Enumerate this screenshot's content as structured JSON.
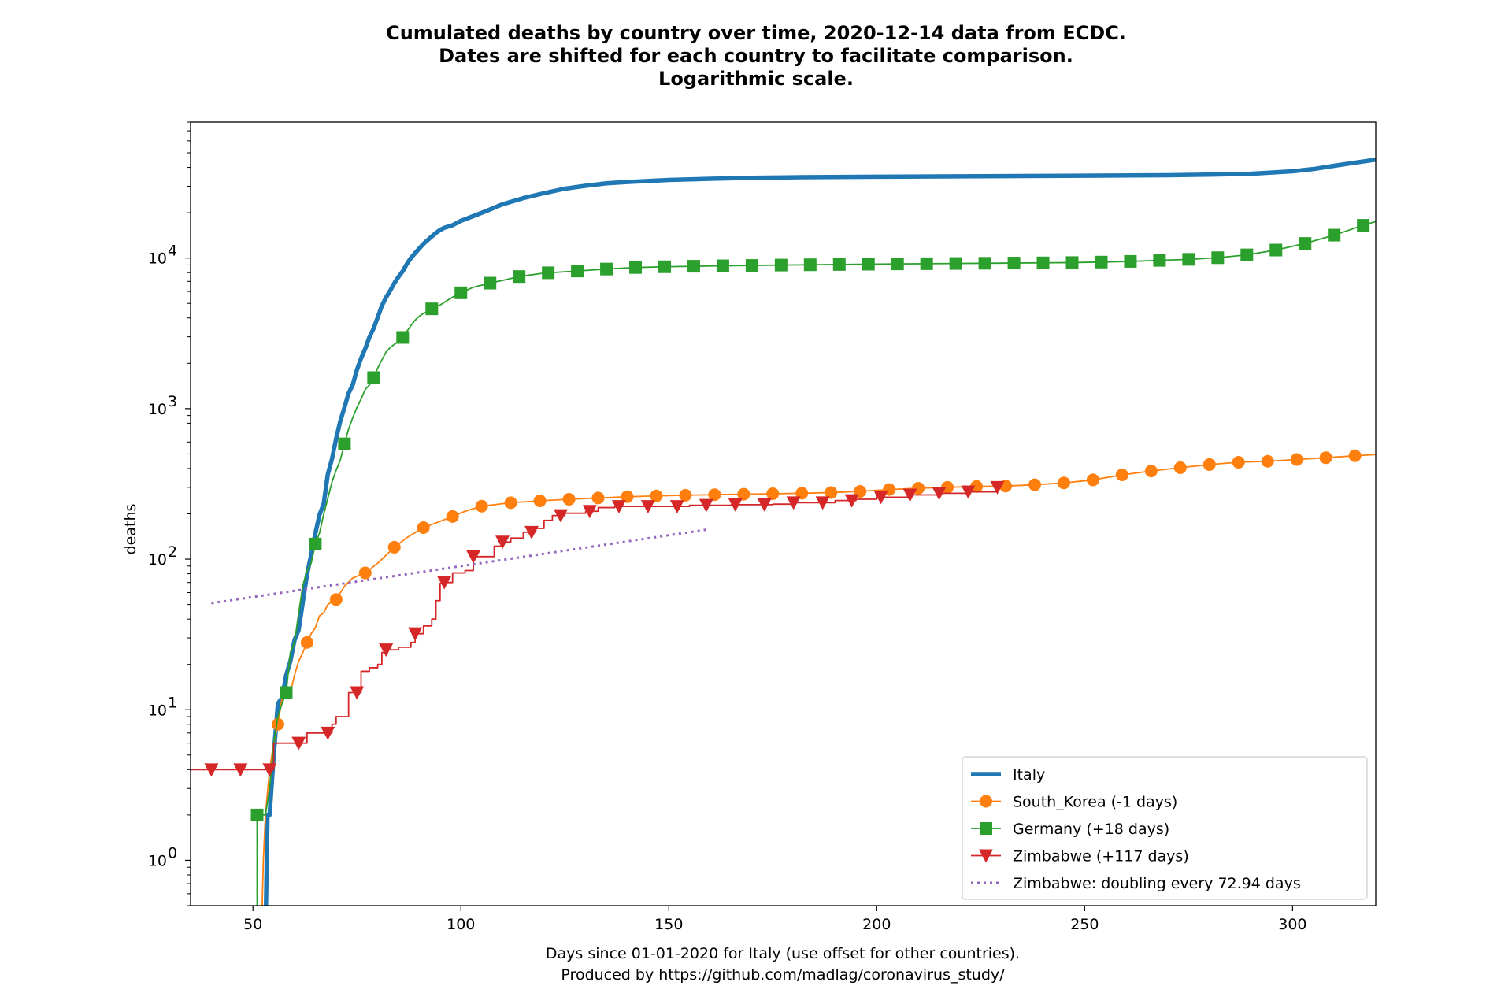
{
  "chart_data": {
    "type": "line",
    "title_lines": [
      "Cumulated deaths by country over time, 2020-12-14 data from ECDC.",
      "Dates are shifted for each country to facilitate comparison.",
      "Logarithmic scale."
    ],
    "xlabel_lines": [
      "Days since 01-01-2020 for Italy (use offset for other countries).",
      "Produced by https://github.com/madlag/coronavirus_study/"
    ],
    "ylabel": "deaths",
    "xlim": [
      35,
      320
    ],
    "ylim": [
      0.5,
      80000
    ],
    "yscale": "log",
    "x_ticks": [
      50,
      100,
      150,
      200,
      250,
      300
    ],
    "x_tick_labels": [
      "50",
      "100",
      "150",
      "200",
      "250",
      "300"
    ],
    "y_ticks": [
      1,
      10,
      100,
      1000,
      10000
    ],
    "y_tick_labels": [
      "10",
      "10",
      "10",
      "10",
      "10"
    ],
    "y_tick_exponents": [
      "0",
      "1",
      "2",
      "3",
      "4"
    ],
    "grid": false,
    "legend_position": "lower-right",
    "series": [
      {
        "name": "Italy",
        "color": "#1f77b4",
        "marker": "none",
        "style": "solid-thick",
        "points": [
          [
            53,
            0.3
          ],
          [
            53.5,
            2
          ],
          [
            54,
            2
          ],
          [
            55,
            5
          ],
          [
            56,
            11
          ],
          [
            57,
            12
          ],
          [
            58,
            17
          ],
          [
            59,
            21
          ],
          [
            60,
            29
          ],
          [
            61,
            34
          ],
          [
            62,
            52
          ],
          [
            63,
            79
          ],
          [
            64,
            107
          ],
          [
            65,
            148
          ],
          [
            66,
            197
          ],
          [
            67,
            233
          ],
          [
            68,
            366
          ],
          [
            69,
            463
          ],
          [
            70,
            631
          ],
          [
            71,
            827
          ],
          [
            72,
            1016
          ],
          [
            73,
            1266
          ],
          [
            74,
            1441
          ],
          [
            75,
            1809
          ],
          [
            76,
            2158
          ],
          [
            77,
            2503
          ],
          [
            78,
            2978
          ],
          [
            79,
            3405
          ],
          [
            80,
            4032
          ],
          [
            81,
            4825
          ],
          [
            82,
            5476
          ],
          [
            83,
            6077
          ],
          [
            84,
            6820
          ],
          [
            85,
            7503
          ],
          [
            86,
            8165
          ],
          [
            87,
            9134
          ],
          [
            88,
            10023
          ],
          [
            89,
            10779
          ],
          [
            90,
            11591
          ],
          [
            91,
            12428
          ],
          [
            92,
            13155
          ],
          [
            93,
            13915
          ],
          [
            94,
            14681
          ],
          [
            95,
            15362
          ],
          [
            96,
            15887
          ],
          [
            98,
            16523
          ],
          [
            100,
            17669
          ],
          [
            103,
            19000
          ],
          [
            106,
            20465
          ],
          [
            110,
            22745
          ],
          [
            115,
            25000
          ],
          [
            120,
            26977
          ],
          [
            125,
            28884
          ],
          [
            130,
            30201
          ],
          [
            135,
            31368
          ],
          [
            140,
            32000
          ],
          [
            150,
            33000
          ],
          [
            160,
            33600
          ],
          [
            170,
            34100
          ],
          [
            180,
            34400
          ],
          [
            200,
            34700
          ],
          [
            230,
            35000
          ],
          [
            250,
            35200
          ],
          [
            270,
            35500
          ],
          [
            280,
            35800
          ],
          [
            290,
            36300
          ],
          [
            300,
            37700
          ],
          [
            305,
            39000
          ],
          [
            310,
            41000
          ],
          [
            315,
            43000
          ],
          [
            320,
            45000
          ]
        ]
      },
      {
        "name": "South_Korea (-1 days)",
        "color": "#ff7f0e",
        "marker": "circle",
        "style": "solid",
        "points": [
          [
            52,
            0.3
          ],
          [
            52.5,
            1
          ],
          [
            53,
            2
          ],
          [
            54,
            4
          ],
          [
            55,
            6
          ],
          [
            56,
            8
          ],
          [
            57,
            12
          ],
          [
            58,
            13
          ],
          [
            59,
            13
          ],
          [
            60,
            17
          ],
          [
            61,
            21
          ],
          [
            62,
            24
          ],
          [
            63,
            28
          ],
          [
            64,
            32
          ],
          [
            65,
            35
          ],
          [
            66,
            42
          ],
          [
            67,
            44
          ],
          [
            68,
            50
          ],
          [
            70,
            54
          ],
          [
            72,
            66
          ],
          [
            74,
            75
          ],
          [
            77,
            81
          ],
          [
            80,
            94
          ],
          [
            84,
            120
          ],
          [
            87,
            139
          ],
          [
            91,
            162
          ],
          [
            94,
            174
          ],
          [
            98,
            192
          ],
          [
            101,
            208
          ],
          [
            105,
            225
          ],
          [
            112,
            237
          ],
          [
            119,
            244
          ],
          [
            126,
            250
          ],
          [
            133,
            255
          ],
          [
            140,
            260
          ],
          [
            147,
            263
          ],
          [
            154,
            266
          ],
          [
            161,
            268
          ],
          [
            168,
            270
          ],
          [
            175,
            272
          ],
          [
            182,
            274
          ],
          [
            189,
            277
          ],
          [
            196,
            282
          ],
          [
            203,
            290
          ],
          [
            210,
            296
          ],
          [
            217,
            300
          ],
          [
            224,
            304
          ],
          [
            231,
            306
          ],
          [
            238,
            312
          ],
          [
            245,
            321
          ],
          [
            252,
            336
          ],
          [
            259,
            363
          ],
          [
            266,
            385
          ],
          [
            273,
            405
          ],
          [
            280,
            425
          ],
          [
            287,
            440
          ],
          [
            294,
            447
          ],
          [
            301,
            459
          ],
          [
            308,
            472
          ],
          [
            315,
            486
          ],
          [
            320,
            495
          ]
        ],
        "marker_x": [
          56,
          63,
          70,
          77,
          84,
          91,
          98,
          105,
          112,
          119,
          126,
          133,
          140,
          147,
          154,
          161,
          168,
          175,
          182,
          189,
          196,
          203,
          210,
          217,
          224,
          231,
          238,
          245,
          252,
          259,
          266,
          273,
          280,
          287,
          294,
          301,
          308,
          315
        ]
      },
      {
        "name": "Germany (+18 days)",
        "color": "#2ca02c",
        "marker": "square",
        "style": "solid",
        "points": [
          [
            51,
            0.3
          ],
          [
            51,
            2
          ],
          [
            52,
            2
          ],
          [
            53,
            2
          ],
          [
            54,
            3
          ],
          [
            55,
            6
          ],
          [
            56,
            9
          ],
          [
            57,
            11
          ],
          [
            58,
            13
          ],
          [
            59,
            24
          ],
          [
            60,
            28
          ],
          [
            61,
            44
          ],
          [
            62,
            67
          ],
          [
            63,
            84
          ],
          [
            64,
            94
          ],
          [
            65,
            126
          ],
          [
            66,
            149
          ],
          [
            67,
            198
          ],
          [
            68,
            253
          ],
          [
            69,
            325
          ],
          [
            70,
            389
          ],
          [
            71,
            455
          ],
          [
            72,
            583
          ],
          [
            73,
            732
          ],
          [
            74,
            872
          ],
          [
            75,
            1017
          ],
          [
            76,
            1158
          ],
          [
            77,
            1342
          ],
          [
            78,
            1434
          ],
          [
            79,
            1607
          ],
          [
            80,
            1861
          ],
          [
            81,
            2107
          ],
          [
            82,
            2373
          ],
          [
            83,
            2544
          ],
          [
            84,
            2673
          ],
          [
            85,
            2799
          ],
          [
            86,
            2969
          ],
          [
            87,
            3254
          ],
          [
            88,
            3569
          ],
          [
            89,
            3868
          ],
          [
            90,
            4110
          ],
          [
            91,
            4294
          ],
          [
            92,
            4404
          ],
          [
            93,
            4598
          ],
          [
            95,
            4879
          ],
          [
            98,
            5500
          ],
          [
            100,
            5877
          ],
          [
            103,
            6400
          ],
          [
            107,
            6812
          ],
          [
            110,
            7100
          ],
          [
            114,
            7533
          ],
          [
            120,
            7950
          ],
          [
            128,
            8200
          ],
          [
            135,
            8450
          ],
          [
            142,
            8650
          ],
          [
            149,
            8750
          ],
          [
            156,
            8820
          ],
          [
            163,
            8880
          ],
          [
            170,
            8930
          ],
          [
            177,
            8980
          ],
          [
            184,
            9020
          ],
          [
            191,
            9060
          ],
          [
            198,
            9100
          ],
          [
            205,
            9140
          ],
          [
            212,
            9170
          ],
          [
            219,
            9200
          ],
          [
            226,
            9230
          ],
          [
            233,
            9260
          ],
          [
            240,
            9290
          ],
          [
            247,
            9330
          ],
          [
            254,
            9400
          ],
          [
            261,
            9500
          ],
          [
            268,
            9650
          ],
          [
            275,
            9800
          ],
          [
            282,
            10050
          ],
          [
            289,
            10500
          ],
          [
            296,
            11300
          ],
          [
            303,
            12500
          ],
          [
            310,
            14200
          ],
          [
            317,
            16500
          ],
          [
            320,
            17500
          ]
        ],
        "marker_x": [
          51,
          58,
          65,
          72,
          79,
          86,
          93,
          100,
          107,
          114,
          121,
          128,
          135,
          142,
          149,
          156,
          163,
          170,
          177,
          184,
          191,
          198,
          205,
          212,
          219,
          226,
          233,
          240,
          247,
          254,
          261,
          268,
          275,
          282,
          289,
          296,
          303,
          310,
          317
        ]
      },
      {
        "name": "Zimbabwe (+117 days)",
        "color": "#d62728",
        "marker": "triangle-down",
        "style": "step",
        "points": [
          [
            35,
            4
          ],
          [
            54,
            4
          ],
          [
            55,
            6
          ],
          [
            61,
            6
          ],
          [
            63,
            7
          ],
          [
            66,
            7
          ],
          [
            68,
            7
          ],
          [
            69,
            8
          ],
          [
            70,
            9
          ],
          [
            72,
            9
          ],
          [
            73,
            13
          ],
          [
            76,
            18
          ],
          [
            77,
            18
          ],
          [
            78,
            19
          ],
          [
            80,
            20
          ],
          [
            81,
            24
          ],
          [
            82,
            25
          ],
          [
            84,
            25
          ],
          [
            85,
            26
          ],
          [
            87,
            26
          ],
          [
            88,
            28
          ],
          [
            89,
            32
          ],
          [
            91,
            36
          ],
          [
            93,
            40
          ],
          [
            94,
            53
          ],
          [
            95,
            69
          ],
          [
            96,
            70
          ],
          [
            98,
            81
          ],
          [
            101,
            84
          ],
          [
            103,
            104
          ],
          [
            107,
            104
          ],
          [
            108,
            122
          ],
          [
            110,
            130
          ],
          [
            112,
            138
          ],
          [
            115,
            151
          ],
          [
            118,
            160
          ],
          [
            120,
            181
          ],
          [
            122,
            195
          ],
          [
            125,
            202
          ],
          [
            130,
            208
          ],
          [
            133,
            220
          ],
          [
            137,
            224
          ],
          [
            150,
            224
          ],
          [
            155,
            228
          ],
          [
            165,
            230
          ],
          [
            175,
            232
          ],
          [
            180,
            237
          ],
          [
            190,
            245
          ],
          [
            195,
            250
          ],
          [
            200,
            258
          ],
          [
            208,
            267
          ],
          [
            215,
            274
          ],
          [
            222,
            280
          ],
          [
            229,
            300
          ]
        ],
        "marker_x": [
          40,
          47,
          54,
          61,
          68,
          75,
          82,
          89,
          96,
          103,
          110,
          117,
          124,
          131,
          138,
          145,
          152,
          159,
          166,
          173,
          180,
          187,
          194,
          201,
          208,
          215,
          222,
          229
        ]
      },
      {
        "name": "Zimbabwe: doubling every 72.94 days",
        "color": "#9467bd",
        "marker": "none",
        "style": "dotted",
        "points": [
          [
            40,
            51
          ],
          [
            159,
            157
          ]
        ]
      }
    ]
  }
}
